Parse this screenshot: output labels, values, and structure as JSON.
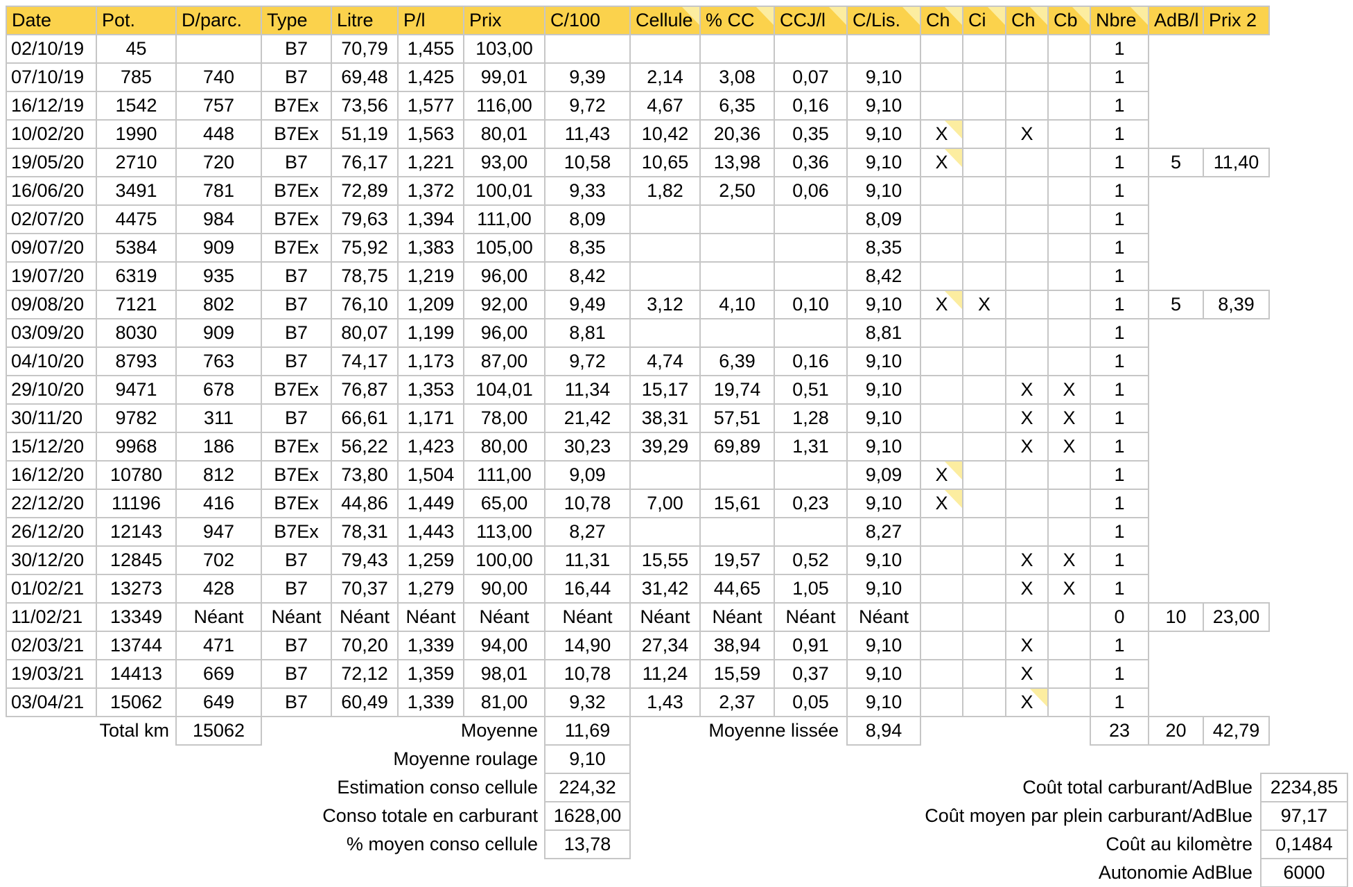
{
  "colors": {
    "header_bg": "#fbd24c",
    "note_marker": "#fceda0",
    "grid_line": "#c6c6c6",
    "text": "#000000"
  },
  "header": {
    "columns": [
      "Date",
      "Pot.",
      "D/parc.",
      "Type",
      "Litre",
      "P/l",
      "Prix",
      "C/100",
      "Cellule",
      "% CC",
      "CCJ/l",
      "C/Lis.",
      "Ch",
      "Ci",
      "Ch",
      "Cb",
      "Nbre",
      "AdB/l",
      "Prix 2"
    ],
    "note_columns": [
      "cellule",
      "pcc",
      "ccjl",
      "clis",
      "ch1",
      "ci",
      "ch2",
      "cb",
      "nbre"
    ]
  },
  "rows": [
    {
      "date": "02/10/19",
      "pot": "45",
      "dparc": "",
      "type": "B7",
      "litre": "70,79",
      "pl": "1,455",
      "prix": "103,00",
      "nbre": "1"
    },
    {
      "date": "07/10/19",
      "pot": "785",
      "dparc": "740",
      "type": "B7",
      "litre": "69,48",
      "pl": "1,425",
      "prix": "99,01",
      "c100": "9,39",
      "cellule": "2,14",
      "pcc": "3,08",
      "ccjl": "0,07",
      "clis": "9,10",
      "nbre": "1"
    },
    {
      "date": "16/12/19",
      "pot": "1542",
      "dparc": "757",
      "type": "B7Ex",
      "litre": "73,56",
      "pl": "1,577",
      "prix": "116,00",
      "c100": "9,72",
      "cellule": "4,67",
      "pcc": "6,35",
      "ccjl": "0,16",
      "clis": "9,10",
      "nbre": "1"
    },
    {
      "date": "10/02/20",
      "pot": "1990",
      "dparc": "448",
      "type": "B7Ex",
      "litre": "51,19",
      "pl": "1,563",
      "prix": "80,01",
      "c100": "11,43",
      "cellule": "10,42",
      "pcc": "20,36",
      "ccjl": "0,35",
      "clis": "9,10",
      "ch1": "X",
      "ch2": "X",
      "nbre": "1",
      "notes": [
        "ch1"
      ]
    },
    {
      "date": "19/05/20",
      "pot": "2710",
      "dparc": "720",
      "type": "B7",
      "litre": "76,17",
      "pl": "1,221",
      "prix": "93,00",
      "c100": "10,58",
      "cellule": "10,65",
      "pcc": "13,98",
      "ccjl": "0,36",
      "clis": "9,10",
      "ch1": "X",
      "nbre": "1",
      "adbl": "5",
      "prix2": "11,40",
      "notes": [
        "ch1"
      ]
    },
    {
      "date": "16/06/20",
      "pot": "3491",
      "dparc": "781",
      "type": "B7Ex",
      "litre": "72,89",
      "pl": "1,372",
      "prix": "100,01",
      "c100": "9,33",
      "cellule": "1,82",
      "pcc": "2,50",
      "ccjl": "0,06",
      "clis": "9,10",
      "nbre": "1"
    },
    {
      "date": "02/07/20",
      "pot": "4475",
      "dparc": "984",
      "type": "B7Ex",
      "litre": "79,63",
      "pl": "1,394",
      "prix": "111,00",
      "c100": "8,09",
      "clis": "8,09",
      "nbre": "1"
    },
    {
      "date": "09/07/20",
      "pot": "5384",
      "dparc": "909",
      "type": "B7Ex",
      "litre": "75,92",
      "pl": "1,383",
      "prix": "105,00",
      "c100": "8,35",
      "clis": "8,35",
      "nbre": "1"
    },
    {
      "date": "19/07/20",
      "pot": "6319",
      "dparc": "935",
      "type": "B7",
      "litre": "78,75",
      "pl": "1,219",
      "prix": "96,00",
      "c100": "8,42",
      "clis": "8,42",
      "nbre": "1"
    },
    {
      "date": "09/08/20",
      "pot": "7121",
      "dparc": "802",
      "type": "B7",
      "litre": "76,10",
      "pl": "1,209",
      "prix": "92,00",
      "c100": "9,49",
      "cellule": "3,12",
      "pcc": "4,10",
      "ccjl": "0,10",
      "clis": "9,10",
      "ch1": "X",
      "ci": "X",
      "nbre": "1",
      "adbl": "5",
      "prix2": "8,39",
      "notes": [
        "ch1"
      ]
    },
    {
      "date": "03/09/20",
      "pot": "8030",
      "dparc": "909",
      "type": "B7",
      "litre": "80,07",
      "pl": "1,199",
      "prix": "96,00",
      "c100": "8,81",
      "clis": "8,81",
      "nbre": "1"
    },
    {
      "date": "04/10/20",
      "pot": "8793",
      "dparc": "763",
      "type": "B7",
      "litre": "74,17",
      "pl": "1,173",
      "prix": "87,00",
      "c100": "9,72",
      "cellule": "4,74",
      "pcc": "6,39",
      "ccjl": "0,16",
      "clis": "9,10",
      "nbre": "1"
    },
    {
      "date": "29/10/20",
      "pot": "9471",
      "dparc": "678",
      "type": "B7Ex",
      "litre": "76,87",
      "pl": "1,353",
      "prix": "104,01",
      "c100": "11,34",
      "cellule": "15,17",
      "pcc": "19,74",
      "ccjl": "0,51",
      "clis": "9,10",
      "ch2": "X",
      "cb": "X",
      "nbre": "1"
    },
    {
      "date": "30/11/20",
      "pot": "9782",
      "dparc": "311",
      "type": "B7",
      "litre": "66,61",
      "pl": "1,171",
      "prix": "78,00",
      "c100": "21,42",
      "cellule": "38,31",
      "pcc": "57,51",
      "ccjl": "1,28",
      "clis": "9,10",
      "ch2": "X",
      "cb": "X",
      "nbre": "1"
    },
    {
      "date": "15/12/20",
      "pot": "9968",
      "dparc": "186",
      "type": "B7Ex",
      "litre": "56,22",
      "pl": "1,423",
      "prix": "80,00",
      "c100": "30,23",
      "cellule": "39,29",
      "pcc": "69,89",
      "ccjl": "1,31",
      "clis": "9,10",
      "ch2": "X",
      "cb": "X",
      "nbre": "1"
    },
    {
      "date": "16/12/20",
      "pot": "10780",
      "dparc": "812",
      "type": "B7Ex",
      "litre": "73,80",
      "pl": "1,504",
      "prix": "111,00",
      "c100": "9,09",
      "clis": "9,09",
      "ch1": "X",
      "nbre": "1",
      "notes": [
        "ch1"
      ]
    },
    {
      "date": "22/12/20",
      "pot": "11196",
      "dparc": "416",
      "type": "B7Ex",
      "litre": "44,86",
      "pl": "1,449",
      "prix": "65,00",
      "c100": "10,78",
      "cellule": "7,00",
      "pcc": "15,61",
      "ccjl": "0,23",
      "clis": "9,10",
      "ch1": "X",
      "nbre": "1",
      "notes": [
        "ch1"
      ]
    },
    {
      "date": "26/12/20",
      "pot": "12143",
      "dparc": "947",
      "type": "B7Ex",
      "litre": "78,31",
      "pl": "1,443",
      "prix": "113,00",
      "c100": "8,27",
      "clis": "8,27",
      "nbre": "1"
    },
    {
      "date": "30/12/20",
      "pot": "12845",
      "dparc": "702",
      "type": "B7",
      "litre": "79,43",
      "pl": "1,259",
      "prix": "100,00",
      "c100": "11,31",
      "cellule": "15,55",
      "pcc": "19,57",
      "ccjl": "0,52",
      "clis": "9,10",
      "ch2": "X",
      "cb": "X",
      "nbre": "1"
    },
    {
      "date": "01/02/21",
      "pot": "13273",
      "dparc": "428",
      "type": "B7",
      "litre": "70,37",
      "pl": "1,279",
      "prix": "90,00",
      "c100": "16,44",
      "cellule": "31,42",
      "pcc": "44,65",
      "ccjl": "1,05",
      "clis": "9,10",
      "ch2": "X",
      "cb": "X",
      "nbre": "1"
    },
    {
      "date": "11/02/21",
      "pot": "13349",
      "dparc": "Néant",
      "type": "Néant",
      "litre": "Néant",
      "pl": "Néant",
      "prix": "Néant",
      "c100": "Néant",
      "cellule": "Néant",
      "pcc": "Néant",
      "ccjl": "Néant",
      "clis": "Néant",
      "nbre": "0",
      "adbl": "10",
      "prix2": "23,00"
    },
    {
      "date": "02/03/21",
      "pot": "13744",
      "dparc": "471",
      "type": "B7",
      "litre": "70,20",
      "pl": "1,339",
      "prix": "94,00",
      "c100": "14,90",
      "cellule": "27,34",
      "pcc": "38,94",
      "ccjl": "0,91",
      "clis": "9,10",
      "ch2": "X",
      "nbre": "1"
    },
    {
      "date": "19/03/21",
      "pot": "14413",
      "dparc": "669",
      "type": "B7",
      "litre": "72,12",
      "pl": "1,359",
      "prix": "98,01",
      "c100": "10,78",
      "cellule": "11,24",
      "pcc": "15,59",
      "ccjl": "0,37",
      "clis": "9,10",
      "ch2": "X",
      "nbre": "1"
    },
    {
      "date": "03/04/21",
      "pot": "15062",
      "dparc": "649",
      "type": "B7",
      "litre": "60,49",
      "pl": "1,339",
      "prix": "81,00",
      "c100": "9,32",
      "cellule": "1,43",
      "pcc": "2,37",
      "ccjl": "0,05",
      "clis": "9,10",
      "ch2": "X",
      "nbre": "1",
      "notes": [
        "ch2"
      ]
    }
  ],
  "summary": {
    "total_row": {
      "label_km": "Total km",
      "total_km": "15062",
      "label_moyenne": "Moyenne",
      "moyenne": "11,69",
      "label_lissee": "Moyenne lissée",
      "moyenne_lissee": "8,94",
      "nbre_total": "23",
      "adb_total": "20",
      "prix2_total": "42,79"
    },
    "left_rows": [
      {
        "label": "Moyenne roulage",
        "value": "9,10"
      },
      {
        "label": "Estimation conso cellule",
        "value": "224,32"
      },
      {
        "label": "Conso totale en carburant",
        "value": "1628,00"
      },
      {
        "label": "% moyen conso cellule",
        "value": "13,78"
      }
    ],
    "right_rows": [
      {
        "label": "Coût total carburant/AdBlue",
        "value": "2234,85"
      },
      {
        "label": "Coût moyen par plein carburant/AdBlue",
        "value": "97,17"
      },
      {
        "label": "Coût au kilomètre",
        "value": "0,1484"
      },
      {
        "label": "Autonomie AdBlue",
        "value": "6000"
      }
    ]
  }
}
